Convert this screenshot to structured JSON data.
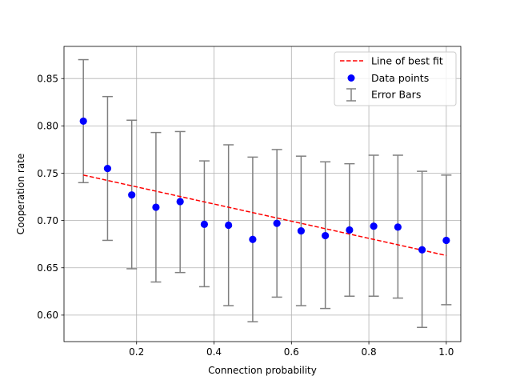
{
  "chart_data": {
    "type": "scatter",
    "title": "",
    "xlabel": "Connection probability",
    "ylabel": "Cooperation rate",
    "xlim": [
      0.0125,
      1.0375
    ],
    "ylim": [
      0.572,
      0.884
    ],
    "xticks": [
      0.2,
      0.4,
      0.6,
      0.8,
      1.0
    ],
    "xtick_labels": [
      "0.2",
      "0.4",
      "0.6",
      "0.8",
      "1.0"
    ],
    "yticks": [
      0.6,
      0.65,
      0.7,
      0.75,
      0.8,
      0.85
    ],
    "ytick_labels": [
      "0.60",
      "0.65",
      "0.70",
      "0.75",
      "0.80",
      "0.85"
    ],
    "grid": true,
    "legend_position": "top-right",
    "series": [
      {
        "name": "Data points",
        "kind": "scatter",
        "color": "#0000ff",
        "x": [
          0.0625,
          0.125,
          0.1875,
          0.25,
          0.3125,
          0.375,
          0.4375,
          0.5,
          0.5625,
          0.625,
          0.6875,
          0.75,
          0.8125,
          0.875,
          0.9375,
          1.0
        ],
        "y": [
          0.805,
          0.755,
          0.727,
          0.714,
          0.72,
          0.696,
          0.695,
          0.68,
          0.697,
          0.689,
          0.684,
          0.69,
          0.694,
          0.693,
          0.669,
          0.679
        ]
      },
      {
        "name": "Error Bars",
        "kind": "errorbar",
        "color": "#808080",
        "lower": [
          0.74,
          0.679,
          0.649,
          0.635,
          0.645,
          0.63,
          0.61,
          0.593,
          0.619,
          0.61,
          0.607,
          0.62,
          0.62,
          0.618,
          0.587,
          0.611
        ],
        "upper": [
          0.87,
          0.831,
          0.806,
          0.793,
          0.794,
          0.763,
          0.78,
          0.767,
          0.775,
          0.768,
          0.762,
          0.76,
          0.769,
          0.769,
          0.752,
          0.748
        ]
      },
      {
        "name": "Line of best fit",
        "kind": "line",
        "style": "dashed",
        "color": "#ff0000",
        "x": [
          0.0625,
          1.0
        ],
        "y": [
          0.748,
          0.663
        ]
      }
    ]
  }
}
